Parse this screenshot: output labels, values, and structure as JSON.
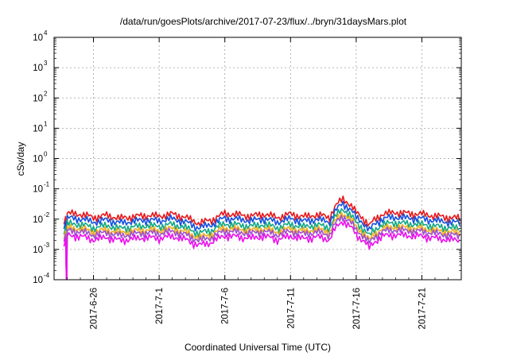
{
  "chart_data": {
    "type": "line",
    "title": "/data/run/goesPlots/archive/2017-07-23/flux/../bryn/31daysMars.plot",
    "xlabel": "Coordinated Universal Time (UTC)",
    "ylabel": "cSv/day",
    "y_scale": "log",
    "ylim": [
      0.0001,
      10000
    ],
    "y_ticks": [
      {
        "base": "10",
        "exp": "-4"
      },
      {
        "base": "10",
        "exp": "-3"
      },
      {
        "base": "10",
        "exp": "-2"
      },
      {
        "base": "10",
        "exp": "-1"
      },
      {
        "base": "10",
        "exp": "0"
      },
      {
        "base": "10",
        "exp": "1"
      },
      {
        "base": "10",
        "exp": "2"
      },
      {
        "base": "10",
        "exp": "3"
      },
      {
        "base": "10",
        "exp": "4"
      }
    ],
    "xlim": [
      "2017-06-23",
      "2017-07-24"
    ],
    "x_ticks": [
      "2017-6-26",
      "2017-7-1",
      "2017-7-6",
      "2017-7-11",
      "2017-7-16",
      "2017-7-21"
    ],
    "grid": true,
    "series": [
      {
        "color": "#e8181a",
        "level": 0.0135,
        "offset": 0.02,
        "x": [],
        "values": []
      },
      {
        "color": "#1550e0",
        "level": 0.0095,
        "offset": 0.3,
        "x": [],
        "values": []
      },
      {
        "color": "#11a885",
        "level": 0.0062,
        "offset": 0.7,
        "x": [],
        "values": []
      },
      {
        "color": "#f0b020",
        "level": 0.0045,
        "offset": 0.9,
        "x": [],
        "values": []
      },
      {
        "color": "#a050d0",
        "level": 0.0036,
        "offset": 1.1,
        "x": [],
        "values": []
      },
      {
        "color": "#ee10ee",
        "level": 0.0025,
        "offset": 1.4,
        "x": [],
        "values": []
      }
    ],
    "samples_x": [
      "2017-06-23T18:00",
      "2017-06-24T00:00",
      "2017-06-25T00:00",
      "2017-06-26T00:00",
      "2017-06-27T00:00",
      "2017-06-28T00:00",
      "2017-06-29T00:00",
      "2017-06-30T00:00",
      "2017-07-01T00:00",
      "2017-07-02T00:00",
      "2017-07-03T00:00",
      "2017-07-04T00:00",
      "2017-07-05T00:00",
      "2017-07-06T00:00",
      "2017-07-07T00:00",
      "2017-07-08T00:00",
      "2017-07-09T00:00",
      "2017-07-10T00:00",
      "2017-07-11T00:00",
      "2017-07-12T00:00",
      "2017-07-13T00:00",
      "2017-07-14T00:00",
      "2017-07-15T00:00",
      "2017-07-16T00:00",
      "2017-07-17T00:00",
      "2017-07-18T00:00",
      "2017-07-19T00:00",
      "2017-07-20T00:00",
      "2017-07-21T00:00",
      "2017-07-22T00:00",
      "2017-07-23T00:00",
      "2017-07-24T00:00"
    ],
    "samples_mult": [
      0.5,
      1.15,
      1.1,
      0.85,
      1.0,
      0.8,
      0.9,
      1.0,
      0.95,
      1.1,
      0.85,
      0.55,
      0.7,
      1.15,
      1.05,
      0.95,
      1.1,
      0.85,
      1.1,
      0.9,
      1.05,
      0.85,
      3.5,
      1.2,
      0.45,
      1.1,
      1.25,
      1.15,
      1.1,
      0.95,
      0.85,
      0.8
    ]
  }
}
